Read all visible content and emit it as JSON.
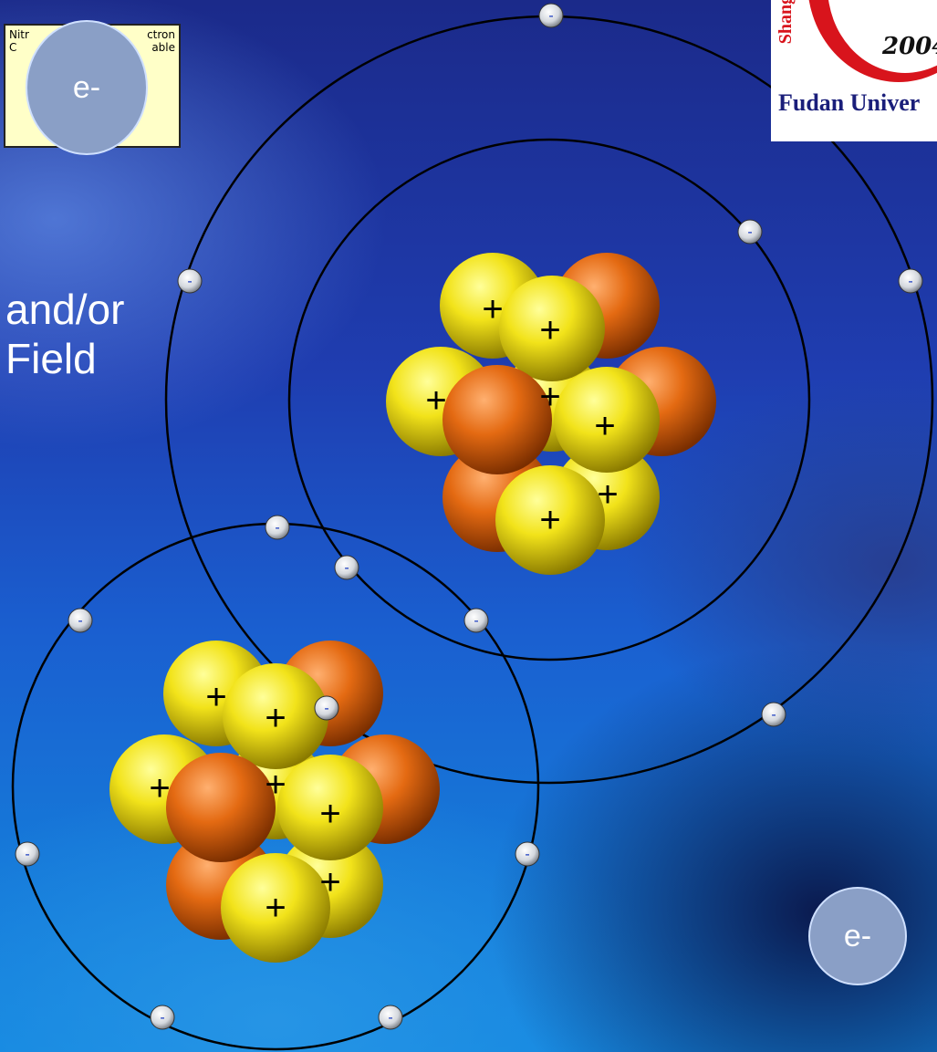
{
  "info_box": {
    "line1_left": "Nitr",
    "line1_right": "ctron",
    "line2_left": "C",
    "line2_right": "able"
  },
  "logo": {
    "year": "2004",
    "vertical_text": "Shang",
    "university": "Fudan Univer"
  },
  "slide_text": {
    "line1": "and/or",
    "line2": "Field"
  },
  "electron_bubbles": [
    "e-",
    "e-"
  ],
  "colors": {
    "proton": "#f2e31a",
    "neutron": "#e46a12",
    "orbit": "#000000",
    "bubble": "#8a9fc6"
  },
  "symbols": {
    "proton_charge": "+",
    "electron_charge": "-"
  }
}
